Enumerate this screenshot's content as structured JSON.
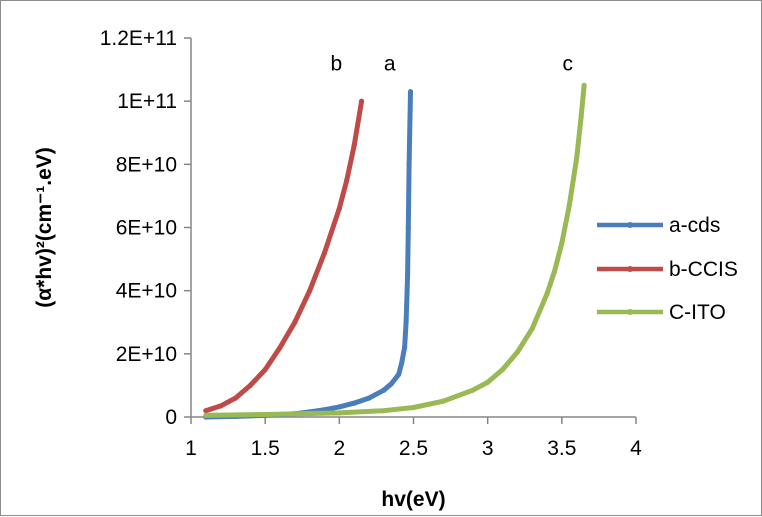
{
  "chart_data": {
    "type": "line",
    "title": "",
    "xlabel": "hv(eV)",
    "ylabel": "(α*hv)²(cm⁻¹.eV)",
    "xlim": [
      1,
      4
    ],
    "ylim": [
      0,
      120000000000
    ],
    "x_ticks": [
      1,
      1.5,
      2,
      2.5,
      3,
      3.5,
      4
    ],
    "x_tick_labels": [
      "1",
      "1.5",
      "2",
      "2.5",
      "3",
      "3.5",
      "4"
    ],
    "y_ticks": [
      0,
      20000000000,
      40000000000,
      60000000000,
      80000000000,
      100000000000,
      120000000000
    ],
    "y_tick_labels": [
      "0",
      "2E+10",
      "4E+10",
      "6E+10",
      "8E+10",
      "1E+11",
      "1.2E+11"
    ],
    "grid": false,
    "legend_position": "right",
    "annotations": [
      {
        "text": "b",
        "x": 1.98,
        "y": 112000000000
      },
      {
        "text": "a",
        "x": 2.34,
        "y": 112000000000
      },
      {
        "text": "c",
        "x": 3.54,
        "y": 112000000000
      }
    ],
    "series": [
      {
        "name": "a-cds",
        "color": "#4a7ebb",
        "x": [
          1.1,
          1.3,
          1.5,
          1.7,
          1.8,
          1.9,
          2.0,
          2.1,
          2.2,
          2.3,
          2.35,
          2.4,
          2.42,
          2.44,
          2.45,
          2.46,
          2.465,
          2.47,
          2.48
        ],
        "y": [
          0,
          200000000,
          500000000,
          1000000000,
          1600000000,
          2300000000,
          3200000000,
          4400000000,
          6000000000,
          8500000000,
          10500000000,
          13500000000,
          17000000000,
          22000000000,
          30000000000,
          45000000000,
          60000000000,
          80000000000,
          103000000000
        ]
      },
      {
        "name": "b-CCIS",
        "color": "#be4b48",
        "x": [
          1.1,
          1.2,
          1.3,
          1.4,
          1.5,
          1.6,
          1.7,
          1.8,
          1.9,
          2.0,
          2.05,
          2.1,
          2.15
        ],
        "y": [
          2000000000,
          3500000000,
          6000000000,
          10000000000,
          15000000000,
          22000000000,
          30000000000,
          40000000000,
          52000000000,
          66000000000,
          75000000000,
          86000000000,
          100000000000
        ]
      },
      {
        "name": "C-ITO",
        "color": "#98b954",
        "x": [
          1.1,
          1.5,
          2.0,
          2.3,
          2.5,
          2.7,
          2.9,
          3.0,
          3.1,
          3.2,
          3.3,
          3.4,
          3.45,
          3.5,
          3.55,
          3.6,
          3.63,
          3.65
        ],
        "y": [
          500000000,
          800000000,
          1300000000,
          2000000000,
          3000000000,
          5000000000,
          8500000000,
          11000000000,
          15000000000,
          20500000000,
          28000000000,
          39000000000,
          46000000000,
          55000000000,
          67000000000,
          82000000000,
          95000000000,
          105000000000
        ]
      }
    ]
  }
}
